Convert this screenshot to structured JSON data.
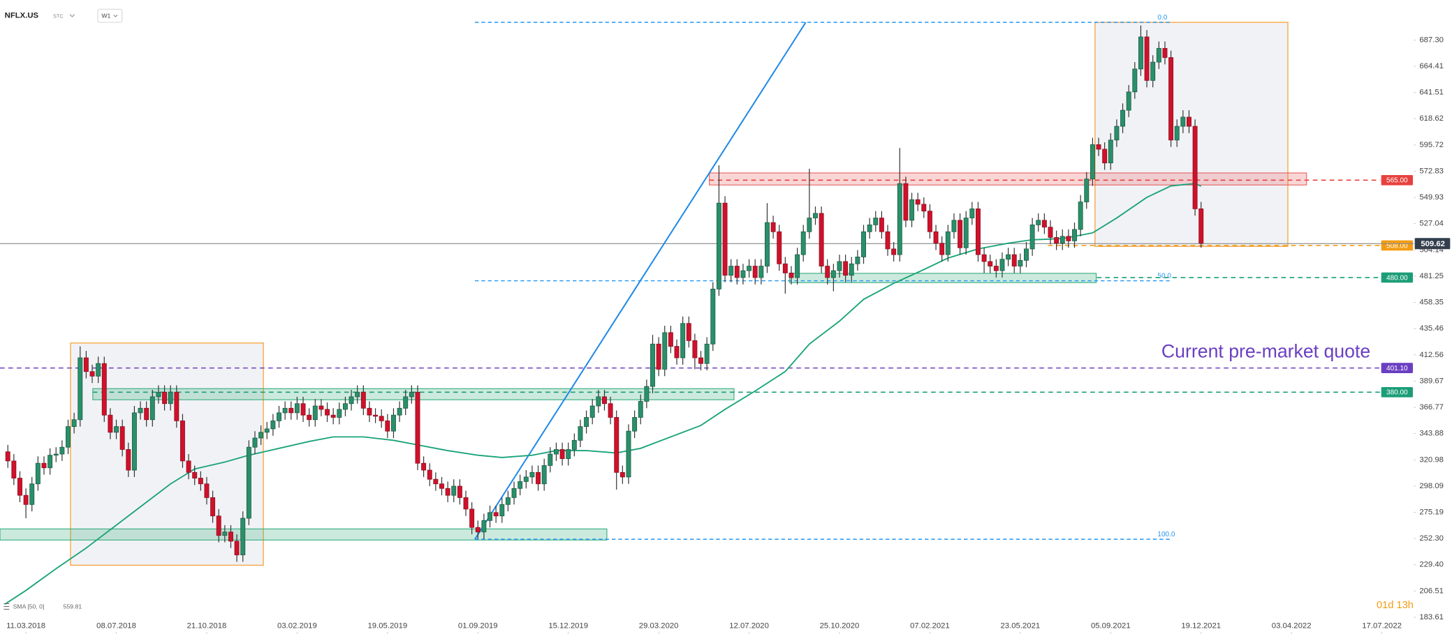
{
  "chart_data": {
    "type": "candlestick",
    "title": "NFLX.US",
    "market": "STC",
    "interval": "W1",
    "countdown": "01d 13h",
    "xlim": [
      -4.3,
      230.3
    ],
    "ylim": [
      169.0,
      722.2
    ],
    "xticks": [
      {
        "value": 0,
        "label": "11.03.2018"
      },
      {
        "value": 15,
        "label": "08.07.2018"
      },
      {
        "value": 30,
        "label": "21.10.2018"
      },
      {
        "value": 45,
        "label": "03.02.2019"
      },
      {
        "value": 60,
        "label": "19.05.2019"
      },
      {
        "value": 75,
        "label": "01.09.2019"
      },
      {
        "value": 90,
        "label": "15.12.2019"
      },
      {
        "value": 105,
        "label": "29.03.2020"
      },
      {
        "value": 120,
        "label": "12.07.2020"
      },
      {
        "value": 135,
        "label": "25.10.2020"
      },
      {
        "value": 150,
        "label": "07.02.2021"
      },
      {
        "value": 165,
        "label": "23.05.2021"
      },
      {
        "value": 180,
        "label": "05.09.2021"
      },
      {
        "value": 195,
        "label": "19.12.2021"
      },
      {
        "value": 210,
        "label": "03.04.2022"
      },
      {
        "value": 225,
        "label": "17.07.2022"
      }
    ],
    "yticks": [
      {
        "value": 687.3,
        "label": "687.30"
      },
      {
        "value": 664.41,
        "label": "664.41"
      },
      {
        "value": 641.51,
        "label": "641.51"
      },
      {
        "value": 618.62,
        "label": "618.62"
      },
      {
        "value": 595.72,
        "label": "595.72"
      },
      {
        "value": 572.83,
        "label": "572.83"
      },
      {
        "value": 549.93,
        "label": "549.93"
      },
      {
        "value": 527.04,
        "label": "527.04"
      },
      {
        "value": 504.14,
        "label": "504.14"
      },
      {
        "value": 481.25,
        "label": "481.25"
      },
      {
        "value": 458.35,
        "label": "458.35"
      },
      {
        "value": 435.46,
        "label": "435.46"
      },
      {
        "value": 412.56,
        "label": "412.56"
      },
      {
        "value": 389.67,
        "label": "389.67"
      },
      {
        "value": 366.77,
        "label": "366.77"
      },
      {
        "value": 343.88,
        "label": "343.88"
      },
      {
        "value": 320.98,
        "label": "320.98"
      },
      {
        "value": 298.09,
        "label": "298.09"
      },
      {
        "value": 275.19,
        "label": "275.19"
      },
      {
        "value": 252.3,
        "label": "252.30"
      },
      {
        "value": 229.4,
        "label": "229.40"
      },
      {
        "value": 206.51,
        "label": "206.51"
      },
      {
        "value": 183.61,
        "label": "183.61"
      }
    ],
    "up_color": "#2a8f6a",
    "down_color": "#d0112b",
    "x": [
      -3,
      -2,
      -1,
      0,
      1,
      2,
      3,
      4,
      5,
      6,
      7,
      8,
      9,
      10,
      11,
      12,
      13,
      14,
      15,
      16,
      17,
      18,
      19,
      20,
      21,
      22,
      23,
      24,
      25,
      26,
      27,
      28,
      29,
      30,
      31,
      32,
      33,
      34,
      35,
      36,
      37,
      38,
      39,
      40,
      41,
      42,
      43,
      44,
      45,
      46,
      47,
      48,
      49,
      50,
      51,
      52,
      53,
      54,
      55,
      56,
      57,
      58,
      59,
      60,
      61,
      62,
      63,
      64,
      65,
      66,
      67,
      68,
      69,
      70,
      71,
      72,
      73,
      74,
      75,
      76,
      77,
      78,
      79,
      80,
      81,
      82,
      83,
      84,
      85,
      86,
      87,
      88,
      89,
      90,
      91,
      92,
      93,
      94,
      95,
      96,
      97,
      98,
      99,
      100,
      101,
      102,
      103,
      104,
      105,
      106,
      107,
      108,
      109,
      110,
      111,
      112,
      113,
      114,
      115,
      116,
      117,
      118,
      119,
      120,
      121,
      122,
      123,
      124,
      125,
      126,
      127,
      128,
      129,
      130,
      131,
      132,
      133,
      134,
      135,
      136,
      137,
      138,
      139,
      140,
      141,
      142,
      143,
      144,
      145,
      146,
      147,
      148,
      149,
      150,
      151,
      152,
      153,
      154,
      155,
      156,
      157,
      158,
      159,
      160,
      161,
      162,
      163,
      164,
      165,
      166,
      167,
      168,
      169,
      170,
      171,
      172,
      173,
      174,
      175,
      176,
      177,
      178,
      179,
      180,
      181,
      182,
      183,
      184,
      185,
      186,
      187,
      188,
      189,
      190,
      191,
      192,
      193,
      194,
      195
    ],
    "open": [
      328,
      320,
      305,
      290,
      282,
      300,
      318,
      314,
      325,
      326,
      332,
      350,
      356,
      410,
      398,
      394,
      405,
      360,
      345,
      350,
      330,
      312,
      362,
      366,
      356,
      376,
      380,
      370,
      380,
      355,
      320,
      310,
      305,
      300,
      288,
      272,
      255,
      258,
      250,
      238,
      270,
      332,
      340,
      345,
      348,
      355,
      362,
      366,
      362,
      370,
      360,
      356,
      368,
      365,
      360,
      358,
      365,
      370,
      376,
      380,
      366,
      360,
      359,
      355,
      346,
      360,
      366,
      376,
      380,
      318,
      312,
      304,
      300,
      296,
      290,
      298,
      288,
      278,
      262,
      258,
      268,
      275,
      272,
      282,
      288,
      296,
      302,
      306,
      310,
      300,
      316,
      326,
      330,
      322,
      330,
      338,
      350,
      358,
      368,
      376,
      370,
      358,
      310,
      306,
      346,
      358,
      372,
      385,
      422,
      400,
      432,
      420,
      410,
      440,
      425,
      410,
      405,
      422,
      470,
      545,
      482,
      490,
      480,
      486,
      490,
      480,
      490,
      528,
      520,
      492,
      484,
      480,
      500,
      520,
      532,
      536,
      490,
      480,
      486,
      494,
      482,
      492,
      498,
      520,
      526,
      532,
      520,
      505,
      500,
      562,
      530,
      548,
      544,
      538,
      520,
      510,
      500,
      520,
      530,
      506,
      532,
      540,
      500,
      494,
      490,
      486,
      496,
      500,
      490,
      495,
      505,
      526,
      530,
      524,
      515,
      510,
      516,
      512,
      522,
      546,
      566,
      596,
      592,
      580,
      600,
      612,
      626,
      642,
      662,
      690,
      652,
      668,
      680,
      672,
      600,
      612,
      620,
      612,
      540
    ],
    "high": [
      334,
      326,
      311,
      296,
      306,
      324,
      324,
      331,
      332,
      338,
      356,
      362,
      420,
      416,
      404,
      411,
      411,
      366,
      356,
      356,
      336,
      368,
      372,
      372,
      382,
      386,
      386,
      386,
      386,
      361,
      326,
      316,
      311,
      306,
      294,
      278,
      264,
      264,
      256,
      276,
      338,
      346,
      351,
      354,
      361,
      368,
      372,
      372,
      376,
      376,
      366,
      374,
      374,
      371,
      366,
      371,
      376,
      382,
      386,
      386,
      372,
      366,
      365,
      361,
      366,
      372,
      382,
      386,
      386,
      324,
      318,
      310,
      306,
      302,
      304,
      304,
      294,
      284,
      268,
      274,
      281,
      281,
      288,
      294,
      302,
      308,
      312,
      316,
      316,
      322,
      332,
      336,
      336,
      336,
      344,
      356,
      364,
      374,
      382,
      382,
      376,
      364,
      316,
      352,
      364,
      378,
      391,
      430,
      428,
      438,
      438,
      426,
      446,
      446,
      431,
      416,
      428,
      476,
      578,
      551,
      496,
      496,
      492,
      496,
      496,
      496,
      545,
      534,
      526,
      498,
      490,
      506,
      526,
      575,
      542,
      542,
      496,
      492,
      500,
      500,
      498,
      504,
      526,
      532,
      538,
      538,
      526,
      511,
      593,
      568,
      554,
      554,
      550,
      544,
      526,
      516,
      526,
      536,
      536,
      538,
      546,
      546,
      506,
      500,
      496,
      502,
      506,
      506,
      501,
      511,
      532,
      536,
      536,
      530,
      521,
      522,
      522,
      528,
      552,
      572,
      602,
      602,
      598,
      606,
      618,
      632,
      648,
      668,
      700,
      696,
      674,
      686,
      686,
      678,
      618,
      626,
      626,
      618,
      546
    ],
    "low": [
      314,
      299,
      284,
      270,
      276,
      294,
      308,
      308,
      319,
      320,
      326,
      344,
      350,
      392,
      388,
      388,
      354,
      339,
      339,
      324,
      306,
      306,
      356,
      350,
      350,
      370,
      364,
      364,
      349,
      314,
      304,
      299,
      294,
      282,
      266,
      249,
      249,
      244,
      232,
      232,
      264,
      326,
      334,
      339,
      342,
      349,
      356,
      356,
      356,
      354,
      350,
      350,
      359,
      354,
      352,
      352,
      359,
      364,
      370,
      360,
      354,
      353,
      349,
      340,
      340,
      354,
      360,
      370,
      312,
      306,
      298,
      294,
      290,
      284,
      284,
      282,
      272,
      256,
      252,
      252,
      262,
      266,
      266,
      276,
      282,
      290,
      296,
      300,
      294,
      294,
      310,
      320,
      316,
      316,
      324,
      332,
      344,
      352,
      362,
      364,
      352,
      295,
      300,
      300,
      340,
      352,
      366,
      379,
      394,
      394,
      414,
      404,
      404,
      419,
      400,
      399,
      399,
      416,
      464,
      476,
      476,
      474,
      474,
      480,
      474,
      474,
      484,
      514,
      486,
      466,
      474,
      474,
      494,
      514,
      526,
      484,
      474,
      468,
      480,
      476,
      476,
      486,
      492,
      514,
      520,
      514,
      499,
      494,
      494,
      524,
      524,
      538,
      532,
      514,
      504,
      494,
      494,
      514,
      500,
      500,
      526,
      494,
      484,
      484,
      480,
      480,
      490,
      484,
      484,
      489,
      499,
      520,
      518,
      509,
      504,
      504,
      506,
      506,
      516,
      540,
      560,
      586,
      574,
      574,
      594,
      606,
      620,
      636,
      656,
      646,
      646,
      662,
      666,
      594,
      594,
      606,
      606,
      534,
      506
    ],
    "close": [
      320,
      305,
      290,
      282,
      300,
      318,
      314,
      325,
      326,
      332,
      350,
      356,
      410,
      398,
      394,
      405,
      360,
      345,
      350,
      330,
      312,
      362,
      366,
      356,
      376,
      380,
      370,
      380,
      355,
      320,
      310,
      305,
      300,
      288,
      272,
      255,
      258,
      250,
      238,
      270,
      332,
      340,
      345,
      348,
      355,
      362,
      366,
      362,
      370,
      360,
      356,
      368,
      365,
      360,
      358,
      365,
      370,
      376,
      380,
      366,
      360,
      359,
      355,
      346,
      360,
      366,
      376,
      380,
      318,
      312,
      304,
      300,
      296,
      290,
      298,
      288,
      278,
      262,
      258,
      268,
      275,
      272,
      282,
      288,
      296,
      302,
      306,
      310,
      300,
      316,
      326,
      330,
      322,
      330,
      338,
      350,
      358,
      368,
      376,
      370,
      358,
      310,
      306,
      346,
      358,
      372,
      385,
      422,
      400,
      432,
      420,
      410,
      440,
      425,
      410,
      405,
      422,
      470,
      545,
      482,
      490,
      480,
      486,
      490,
      480,
      490,
      528,
      520,
      492,
      484,
      480,
      500,
      520,
      532,
      536,
      490,
      480,
      486,
      494,
      482,
      492,
      498,
      520,
      526,
      532,
      520,
      505,
      500,
      562,
      530,
      548,
      544,
      538,
      520,
      510,
      500,
      520,
      530,
      506,
      532,
      540,
      500,
      494,
      490,
      486,
      496,
      500,
      490,
      495,
      505,
      526,
      530,
      524,
      515,
      510,
      516,
      512,
      522,
      546,
      566,
      596,
      592,
      580,
      600,
      612,
      626,
      642,
      662,
      690,
      652,
      668,
      680,
      672,
      600,
      612,
      620,
      612,
      540,
      510
    ],
    "series": [
      {
        "name": "SMA [50, 0]",
        "color": "#1aa37a",
        "x": [
          -3.5,
          0,
          5,
          10,
          14,
          19,
          24,
          28,
          33,
          37,
          42,
          47,
          51,
          56,
          61,
          65,
          70,
          75,
          79,
          84,
          88,
          93,
          98,
          102,
          107,
          112,
          116,
          121,
          126,
          130,
          135,
          139,
          144,
          149,
          153,
          158,
          163,
          167,
          172,
          177,
          181,
          186,
          190,
          194,
          195
        ],
        "values": [
          195,
          207,
          226,
          244,
          260,
          280,
          300,
          313,
          319,
          325,
          331,
          337,
          341,
          341,
          338,
          334,
          329,
          325,
          323,
          325,
          329,
          329,
          327,
          331,
          341,
          351,
          365,
          381,
          398,
          422,
          442,
          461,
          475,
          487,
          497,
          505,
          510,
          513,
          514,
          519,
          532,
          550,
          560,
          562,
          559.81
        ]
      }
    ],
    "boxes": [
      {
        "x": [
          7.4,
          39.4
        ],
        "y": [
          229.0,
          422.9
        ],
        "color": "#f7a440"
      },
      {
        "x": [
          177.4,
          209.4
        ],
        "y": [
          507.2,
          702.7
        ],
        "color": "#f7a440"
      }
    ],
    "zones": [
      {
        "x": [
          113.4,
          212.5
        ],
        "y": [
          560.8,
          571.3
        ],
        "color": "#e85c5c"
      },
      {
        "x": [
          126.7,
          177.6
        ],
        "y": [
          475.6,
          483.7
        ],
        "color": "#2eaa78"
      },
      {
        "x": [
          11.1,
          117.5
        ],
        "y": [
          373.4,
          383.1
        ],
        "color": "#2eaa78"
      },
      {
        "x": [
          -4.3,
          96.4
        ],
        "y": [
          251.0,
          260.7
        ],
        "color": "#2eaa78"
      }
    ],
    "trendline": {
      "x": [
        74.5,
        129.4
      ],
      "y": [
        251.7,
        702.7
      ],
      "color": "#1e88e5"
    },
    "fibonacci": {
      "x": [
        74.5,
        190.1
      ],
      "color": "#2196f3",
      "levels": [
        {
          "value": 702.7,
          "label": "0.0"
        },
        {
          "value": 477.2,
          "label": "50.0"
        },
        {
          "value": 251.7,
          "label": "100.0"
        }
      ]
    },
    "levels": [
      {
        "value": 565,
        "label": "565.00",
        "color": "#e8413e",
        "from": 113.4
      },
      {
        "value": 508,
        "label": "508.00",
        "color": "#f39c12",
        "from": 169.6
      },
      {
        "value": 480,
        "label": "480.00",
        "color": "#1b9e77",
        "from": 177.7
      },
      {
        "value": 401.1,
        "label": "401.10",
        "color": "#6a3fc1",
        "from": -4.3
      },
      {
        "value": 380,
        "label": "380.00",
        "color": "#1b9e77",
        "from": 11.1
      }
    ],
    "last_price": {
      "value": 509.62,
      "label": "509.62",
      "color": "#333f4f"
    },
    "annotation": {
      "text": "Current pre-market quote",
      "color": "#6a3fc1"
    }
  }
}
